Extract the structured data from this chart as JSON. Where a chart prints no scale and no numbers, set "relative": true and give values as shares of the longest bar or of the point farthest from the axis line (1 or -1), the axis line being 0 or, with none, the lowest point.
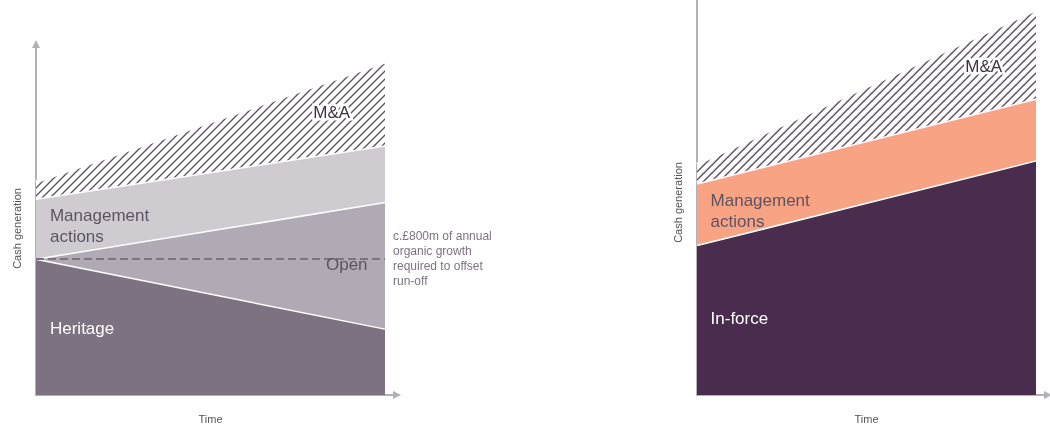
{
  "chart_data": [
    {
      "type": "area",
      "stacked": true,
      "relative": true,
      "categories": [
        null,
        null
      ],
      "xlabel": "Time",
      "ylabel": "Cash generation",
      "legend": false,
      "series": [
        {
          "name": "Heritage",
          "color": "#7d7280",
          "values": [
            0.41,
            0.2
          ]
        },
        {
          "name": "Open",
          "color": "#b1aab4",
          "values": [
            0,
            0.38
          ]
        },
        {
          "name": "Management actions",
          "color": "#cfcbd1",
          "values": [
            0.18,
            0.17
          ]
        },
        {
          "name": "M&A",
          "color": "#5d5462",
          "values": [
            0.05,
            0.25
          ]
        }
      ],
      "ref_lines": [
        {
          "axis": "y",
          "value": 0.41,
          "label": "c.£800m of annual organic growth required to offset run-off",
          "color": "#7d7280",
          "line_style": "dashed"
        }
      ]
    },
    {
      "type": "area",
      "stacked": true,
      "relative": true,
      "categories": [
        null,
        null
      ],
      "xlabel": "Time",
      "ylabel": "Cash generation",
      "legend": false,
      "series": [
        {
          "name": "In-force",
          "color": "#4a2c4f",
          "values": [
            0.39,
            0.61
          ]
        },
        {
          "name": "Management actions",
          "color": "#f7a384",
          "values": [
            0.16,
            0.16
          ]
        },
        {
          "name": "M&A",
          "color": "#5d4a63",
          "values": [
            0.05,
            0.23
          ]
        }
      ]
    }
  ]
}
